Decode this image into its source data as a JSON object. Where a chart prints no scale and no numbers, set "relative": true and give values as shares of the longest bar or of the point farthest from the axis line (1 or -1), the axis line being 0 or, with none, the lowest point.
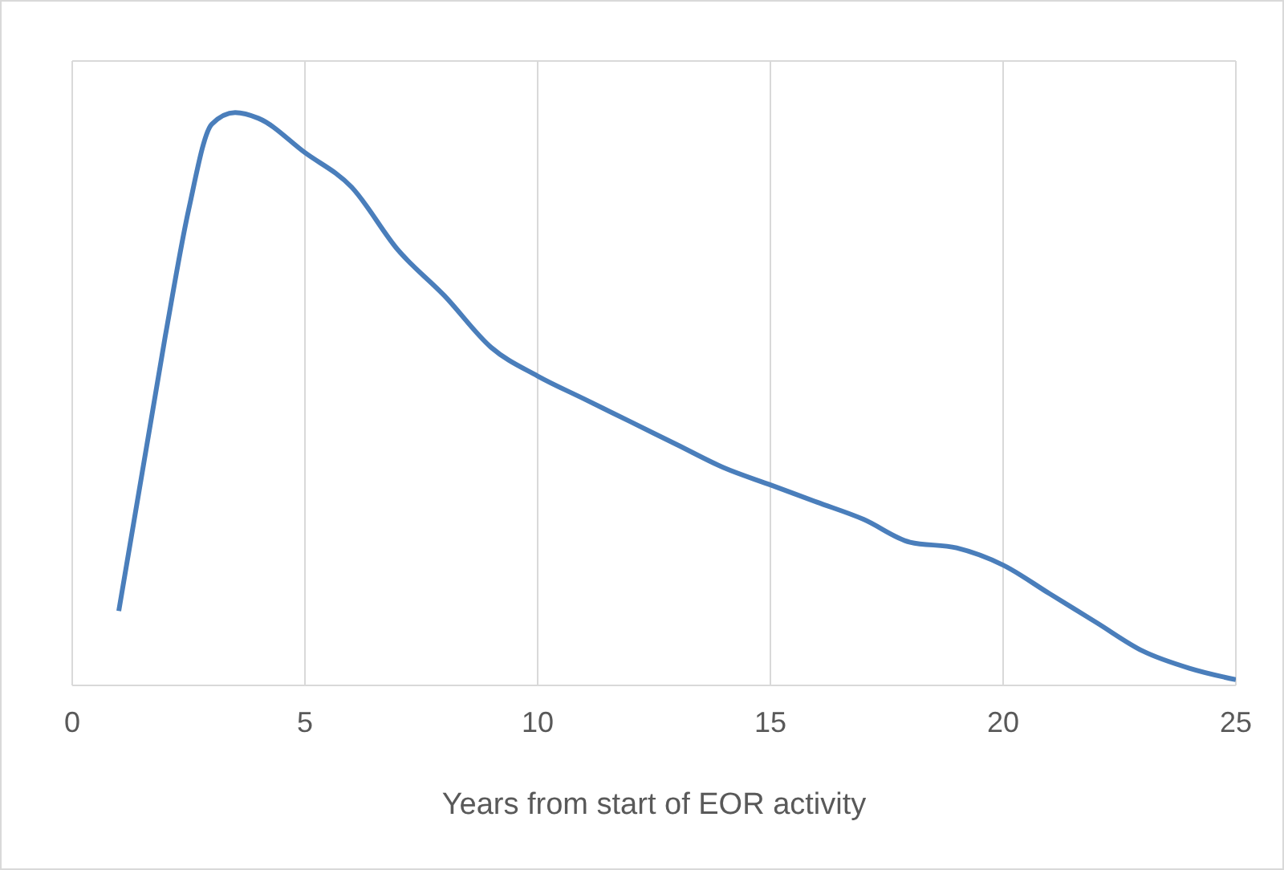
{
  "chart_data": {
    "type": "line",
    "xlabel": "Years from start of EOR activity",
    "relative": true,
    "grid": true,
    "marker": "none",
    "tick_labels": "x",
    "x": [
      1,
      2,
      2.5,
      3,
      3.5,
      4,
      5,
      6,
      7,
      8,
      9,
      10,
      11,
      12,
      13,
      14,
      15,
      16,
      17,
      18,
      19,
      20,
      21,
      22,
      23,
      24,
      25
    ],
    "xlim": [
      0,
      25
    ],
    "xticks": [
      0,
      5,
      10,
      15,
      20,
      25
    ],
    "series": [
      {
        "color": "#4a7ebb",
        "values": [
          0.13,
          0.61,
          0.83,
          0.98,
          1,
          0.99,
          0.93,
          0.87,
          0.76,
          0.68,
          0.59,
          0.54,
          0.5,
          0.46,
          0.42,
          0.38,
          0.35,
          0.32,
          0.29,
          0.25,
          0.24,
          0.21,
          0.16,
          0.11,
          0.06,
          0.03,
          0.01
        ]
      }
    ]
  }
}
